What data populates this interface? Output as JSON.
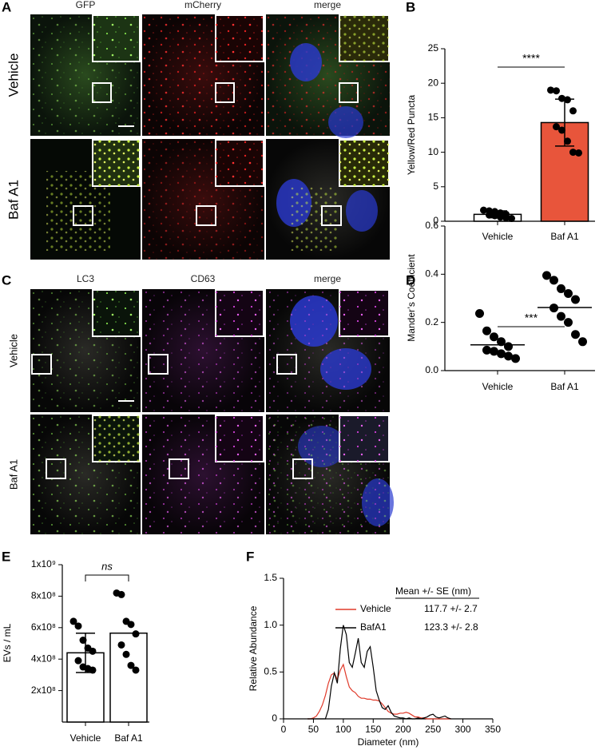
{
  "panel_letters": [
    "A",
    "B",
    "C",
    "D",
    "E",
    "F"
  ],
  "image_panels": [
    {
      "columns": [
        "GFP",
        "mCherry",
        "merge"
      ],
      "rows": [
        "Vehicle",
        "Baf A1"
      ]
    },
    {
      "columns": [
        "LC3",
        "CD63",
        "merge"
      ],
      "rows": [
        "Vehicle",
        "Baf A1"
      ]
    }
  ],
  "chart_data": [
    {
      "type": "bar",
      "y_label": "Yellow/Red Puncta",
      "categories": [
        "Vehicle",
        "Baf A1"
      ],
      "values": [
        1.0,
        14.3
      ],
      "errors": [
        0.5,
        3.4
      ],
      "colors": [
        "#ffffff",
        "#e8553b"
      ],
      "points": [
        [
          1.6,
          1.5,
          1.4,
          1.2,
          1.0,
          0.9,
          0.8,
          0.6,
          0.5,
          0.4
        ],
        [
          19.0,
          18.9,
          17.8,
          17.6,
          16.0,
          13.7,
          13.2,
          11.6,
          10.0,
          9.9
        ]
      ],
      "significance": "****",
      "ylim": [
        0,
        25
      ],
      "yticks": [
        0,
        5,
        10,
        15,
        20,
        25
      ]
    },
    {
      "type": "scatter",
      "y_label": "Mander’s Coefficient",
      "categories": [
        "Vehicle",
        "Baf A1"
      ],
      "points": [
        [
          0.237,
          0.165,
          0.14,
          0.12,
          0.1,
          0.085,
          0.08,
          0.07,
          0.06,
          0.05
        ],
        [
          0.395,
          0.375,
          0.34,
          0.32,
          0.295,
          0.26,
          0.225,
          0.2,
          0.15,
          0.12
        ]
      ],
      "medians": [
        0.107,
        0.262
      ],
      "significance": "***",
      "ylim": [
        0,
        0.6
      ],
      "yticks": [
        {
          "value": 0,
          "label": "0.0"
        },
        0.2,
        0.4,
        0.6
      ]
    },
    {
      "type": "bar",
      "y_label": "EVs / mL",
      "categories": [
        "Vehicle",
        "Baf A1"
      ],
      "values": [
        440000000,
        565000000
      ],
      "errors": [
        125000000,
        null
      ],
      "colors": [
        "#ffffff",
        "#ffffff"
      ],
      "points": [
        [
          640000000,
          610000000,
          520000000,
          470000000,
          450000000,
          390000000,
          350000000,
          340000000,
          330000000
        ],
        [
          820000000,
          810000000,
          640000000,
          620000000,
          560000000,
          490000000,
          430000000,
          360000000,
          330000000
        ]
      ],
      "significance": "ns",
      "ylim": [
        0,
        1000000000
      ],
      "yticks": [
        {
          "value": 200000000,
          "label": "2x10⁸"
        },
        {
          "value": 400000000,
          "label": "4x10⁸"
        },
        {
          "value": 600000000,
          "label": "6x10⁸"
        },
        {
          "value": 800000000,
          "label": "8x10⁸"
        },
        {
          "value": 1000000000,
          "label": "1x10⁹"
        }
      ]
    },
    {
      "type": "line",
      "x_label": "Diameter (nm)",
      "y_label": "Relative Abundance",
      "legend_title": "Mean +/- SE (nm)",
      "x": [
        40,
        45,
        50,
        55,
        60,
        65,
        70,
        75,
        80,
        85,
        90,
        95,
        100,
        105,
        110,
        115,
        120,
        125,
        130,
        135,
        140,
        145,
        150,
        155,
        160,
        165,
        170,
        175,
        180,
        185,
        190,
        195,
        200,
        205,
        210,
        215,
        220,
        225,
        230,
        235,
        240,
        245,
        250,
        255,
        260,
        265,
        270,
        275,
        280
      ],
      "series": [
        {
          "name": "Vehicle",
          "stat": "117.7 +/- 2.7",
          "color": "#e03a2a",
          "values": [
            0,
            0,
            0.01,
            0.03,
            0.08,
            0.15,
            0.25,
            0.38,
            0.47,
            0.49,
            0.42,
            0.52,
            0.58,
            0.45,
            0.34,
            0.3,
            0.28,
            0.24,
            0.22,
            0.22,
            0.21,
            0.21,
            0.2,
            0.2,
            0.19,
            0.16,
            0.12,
            0.08,
            0.06,
            0.05,
            0.05,
            0.06,
            0.06,
            0.07,
            0.06,
            0.04,
            0.02,
            0.02,
            0.01,
            0.01,
            0,
            0,
            0,
            0,
            0,
            0,
            0,
            0,
            0
          ]
        },
        {
          "name": "BafA1",
          "stat": "123.3 +/- 2.8",
          "color": "#000000",
          "values": [
            0,
            0,
            0,
            0,
            0,
            0,
            0,
            0.1,
            0.35,
            0.49,
            0.38,
            0.75,
            1.0,
            0.9,
            0.6,
            0.55,
            0.7,
            0.86,
            0.6,
            0.55,
            0.72,
            0.77,
            0.55,
            0.3,
            0.2,
            0.12,
            0.1,
            0.14,
            0.07,
            0.03,
            0.02,
            0.01,
            0.01,
            0,
            0.01,
            0,
            0,
            0.01,
            0,
            0.01,
            0.02,
            0.04,
            0.05,
            0.02,
            0.01,
            0.02,
            0.03,
            0.01,
            0
          ]
        }
      ],
      "xlim": [
        0,
        350
      ],
      "xticks": [
        0,
        50,
        100,
        150,
        200,
        250,
        300,
        350
      ],
      "ylim": [
        0,
        1.5
      ],
      "yticks": [
        0,
        0.5,
        {
          "value": 1,
          "label": "1.0"
        },
        1.5
      ]
    }
  ]
}
